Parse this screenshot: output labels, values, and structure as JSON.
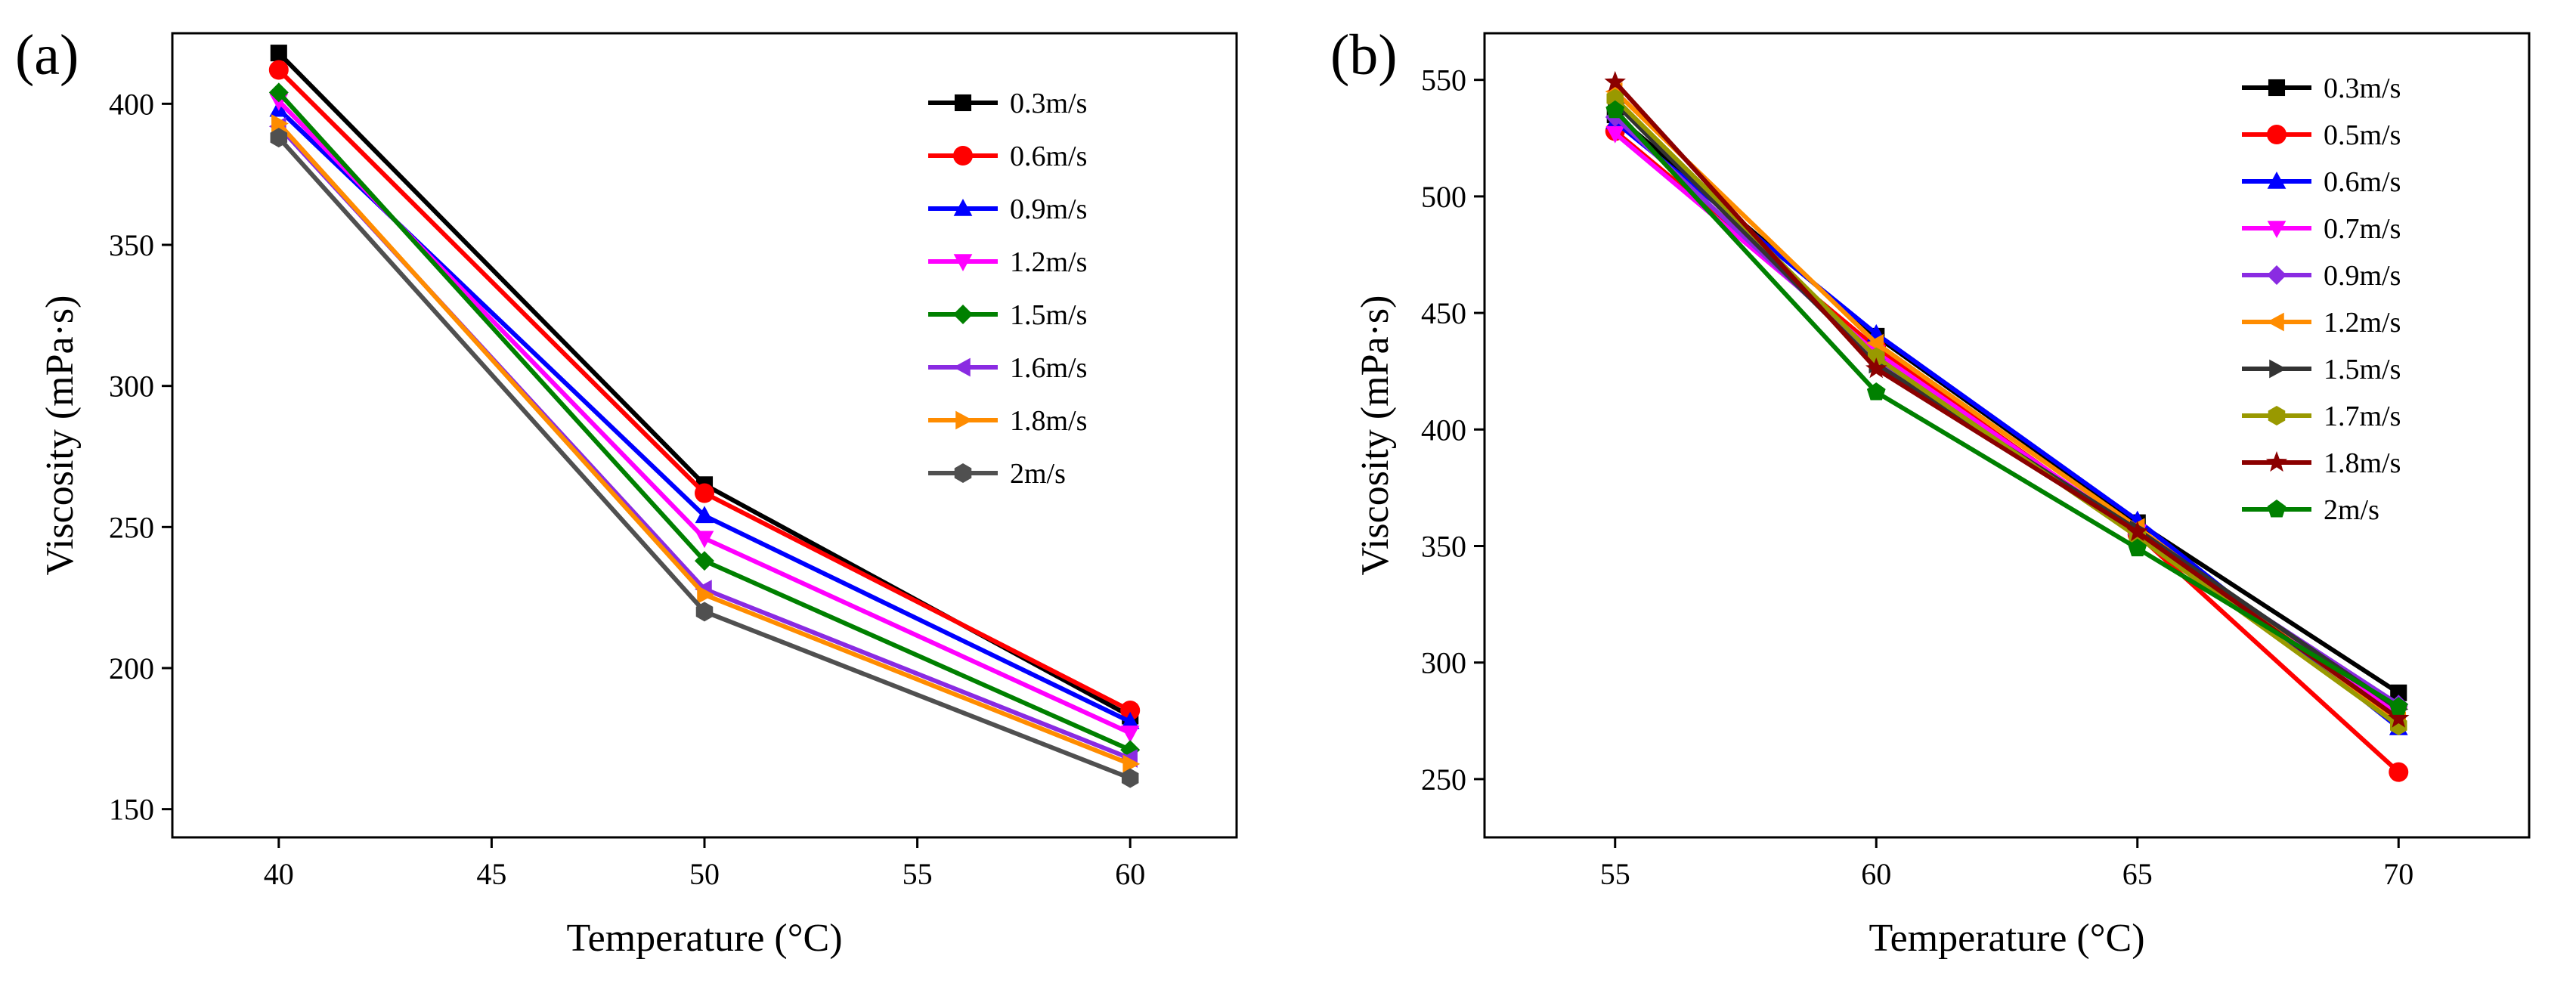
{
  "chart_data": [
    {
      "type": "line",
      "panel_label": "(a)",
      "title": "",
      "xlabel": "Temperature (°C)",
      "ylabel": "Viscosity (mPa·s)",
      "xlim": [
        37.5,
        62.5
      ],
      "ylim": [
        140,
        425
      ],
      "x_ticks": [
        40,
        45,
        50,
        55,
        60
      ],
      "y_ticks": [
        150,
        200,
        250,
        300,
        350,
        400
      ],
      "x_tick_labels": [
        "40",
        "45",
        "50",
        "55",
        "60"
      ],
      "y_tick_labels": [
        "150",
        "200",
        "250",
        "300",
        "350",
        "400"
      ],
      "legend_position": "top-right",
      "x": [
        40,
        50,
        60
      ],
      "series": [
        {
          "name": "0.3m/s",
          "color": "#000000",
          "marker": "square",
          "values": [
            418,
            265,
            183
          ]
        },
        {
          "name": "0.6m/s",
          "color": "#ff0000",
          "marker": "circle",
          "values": [
            412,
            262,
            185
          ]
        },
        {
          "name": "0.9m/s",
          "color": "#0000ff",
          "marker": "triangle-up",
          "values": [
            398,
            254,
            181
          ]
        },
        {
          "name": "1.2m/s",
          "color": "#ff00ff",
          "marker": "triangle-down",
          "values": [
            401,
            246,
            177
          ]
        },
        {
          "name": "1.5m/s",
          "color": "#008000",
          "marker": "diamond",
          "values": [
            404,
            238,
            171
          ]
        },
        {
          "name": "1.6m/s",
          "color": "#8a2be2",
          "marker": "triangle-left",
          "values": [
            392,
            228,
            168
          ]
        },
        {
          "name": "1.8m/s",
          "color": "#ff8c00",
          "marker": "triangle-right",
          "values": [
            393,
            226,
            166
          ]
        },
        {
          "name": "2m/s",
          "color": "#505050",
          "marker": "hexagon",
          "values": [
            388,
            220,
            161
          ]
        }
      ]
    },
    {
      "type": "line",
      "panel_label": "(b)",
      "title": "",
      "xlabel": "Temperature (°C)",
      "ylabel": "Viscosity (mPa·s)",
      "xlim": [
        52.5,
        72.5
      ],
      "ylim": [
        225,
        570
      ],
      "x_ticks": [
        55,
        60,
        65,
        70
      ],
      "y_ticks": [
        250,
        300,
        350,
        400,
        450,
        500,
        550
      ],
      "x_tick_labels": [
        "55",
        "60",
        "65",
        "70"
      ],
      "y_tick_labels": [
        "250",
        "300",
        "350",
        "400",
        "450",
        "500",
        "550"
      ],
      "legend_position": "top-right",
      "x": [
        55,
        60,
        65,
        70
      ],
      "series": [
        {
          "name": "0.3m/s",
          "color": "#000000",
          "marker": "square",
          "values": [
            535,
            440,
            360,
            287
          ]
        },
        {
          "name": "0.5m/s",
          "color": "#ff0000",
          "marker": "circle",
          "values": [
            528,
            435,
            355,
            253
          ]
        },
        {
          "name": "0.6m/s",
          "color": "#0000ff",
          "marker": "triangle-up",
          "values": [
            532,
            441,
            361,
            272
          ]
        },
        {
          "name": "0.7m/s",
          "color": "#ff00ff",
          "marker": "triangle-down",
          "values": [
            527,
            433,
            356,
            278
          ]
        },
        {
          "name": "0.9m/s",
          "color": "#8a2be2",
          "marker": "diamond",
          "values": [
            534,
            430,
            355,
            282
          ]
        },
        {
          "name": "1.2m/s",
          "color": "#ff8c00",
          "marker": "triangle-left",
          "values": [
            545,
            437,
            358,
            275
          ]
        },
        {
          "name": "1.5m/s",
          "color": "#333333",
          "marker": "triangle-right",
          "values": [
            540,
            428,
            357,
            280
          ]
        },
        {
          "name": "1.7m/s",
          "color": "#999900",
          "marker": "hexagon",
          "values": [
            542,
            431,
            354,
            273
          ]
        },
        {
          "name": "1.8m/s",
          "color": "#8b0000",
          "marker": "star",
          "values": [
            549,
            426,
            356,
            276
          ]
        },
        {
          "name": "2m/s",
          "color": "#008000",
          "marker": "pentagon",
          "values": [
            537,
            416,
            349,
            281
          ]
        }
      ]
    }
  ]
}
